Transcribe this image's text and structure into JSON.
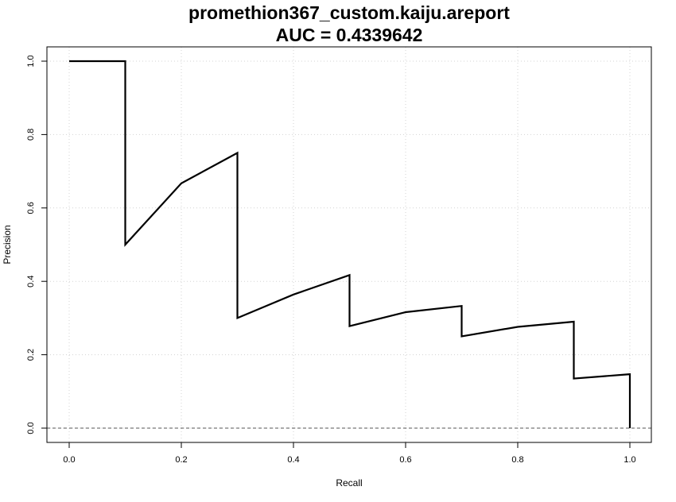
{
  "chart_data": {
    "type": "line",
    "title": "promethion367_custom.kaiju.areport",
    "subtitle": "AUC = 0.4339642",
    "xlabel": "Recall",
    "ylabel": "Precision",
    "xlim": [
      0.0,
      1.0
    ],
    "ylim": [
      0.0,
      1.0
    ],
    "x_ticks": [
      "0.0",
      "0.2",
      "0.4",
      "0.6",
      "0.8",
      "1.0"
    ],
    "y_ticks": [
      "0.0",
      "0.2",
      "0.4",
      "0.6",
      "0.8",
      "1.0"
    ],
    "grid": true,
    "baseline": 0.0,
    "series": [
      {
        "color": "#000000",
        "x": [
          0.0,
          0.1,
          0.1,
          0.2,
          0.3,
          0.3,
          0.4,
          0.5,
          0.5,
          0.6,
          0.7,
          0.7,
          0.8,
          0.9,
          0.9,
          1.0,
          1.0
        ],
        "y": [
          1.0,
          1.0,
          0.5,
          0.667,
          0.75,
          0.3,
          0.364,
          0.417,
          0.278,
          0.316,
          0.333,
          0.25,
          0.276,
          0.29,
          0.135,
          0.147,
          0.0
        ]
      }
    ]
  }
}
